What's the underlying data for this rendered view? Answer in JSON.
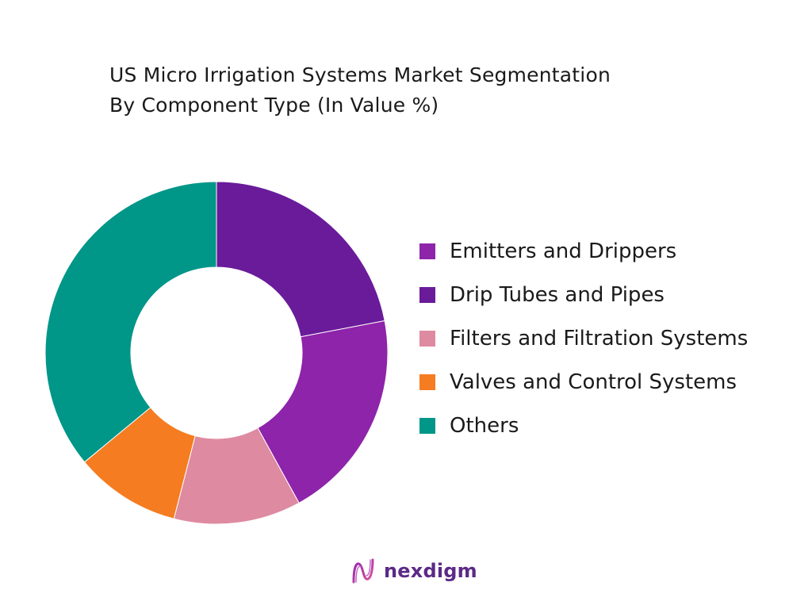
{
  "chart_data": {
    "type": "pie",
    "donut": true,
    "title": "US Micro Irrigation Systems Market Segmentation",
    "subtitle": "By Component Type (In Value %)",
    "categories": [
      "Drip Tubes and Pipes",
      "Emitters and Drippers",
      "Filters and Filtration Systems",
      "Valves and Control Systems",
      "Others"
    ],
    "values": [
      22,
      20,
      12,
      10,
      36
    ],
    "colors": [
      "#6a1b9a",
      "#8e24aa",
      "#de8aa0",
      "#f57c20",
      "#009688"
    ],
    "legend": {
      "position": "right",
      "entries": [
        {
          "label": "Emitters and Drippers",
          "color": "#8e24aa"
        },
        {
          "label": "Drip Tubes and Pipes",
          "color": "#6a1b9a"
        },
        {
          "label": "Filters and Filtration Systems",
          "color": "#de8aa0"
        },
        {
          "label": "Valves and Control Systems",
          "color": "#f57c20"
        },
        {
          "label": "Others",
          "color": "#009688"
        }
      ]
    }
  },
  "brand": {
    "name": "nexdigm",
    "icon": "nexdigm-logo-icon",
    "color": "#5b2a86"
  }
}
